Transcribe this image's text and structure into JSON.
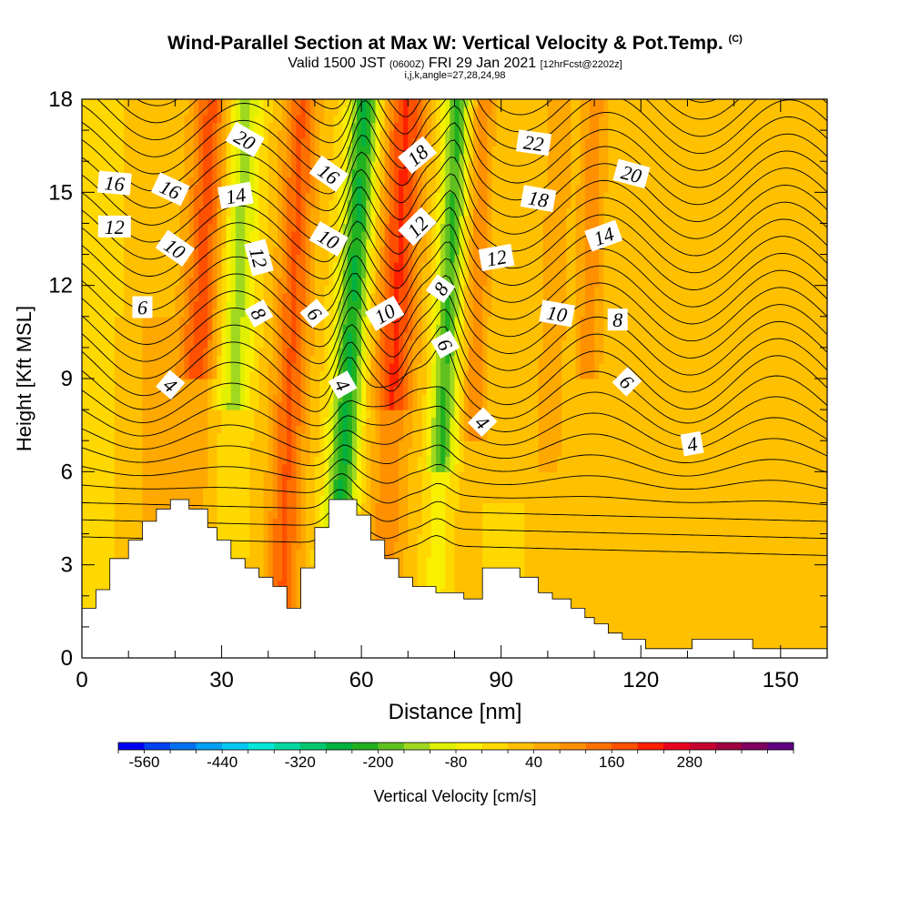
{
  "header": {
    "title": "Wind-Parallel Section at Max W: Vertical Velocity & Pot.Temp.",
    "copyright": "(C)",
    "valid_main": "Valid 1500 JST",
    "valid_utc": "(0600Z)",
    "valid_date": "FRI 29 Jan 2021",
    "forecast_info": "[12hrFcst@2202z]",
    "grid_info": "i,j,k,angle=27,28,24,98"
  },
  "chart_data": {
    "type": "heatmap",
    "xlabel": "Distance [nm]",
    "ylabel": "Height [Kft MSL]",
    "xlim": [
      0,
      160
    ],
    "ylim": [
      0,
      18
    ],
    "x_ticks": [
      "0",
      "30",
      "60",
      "90",
      "120",
      "150"
    ],
    "y_ticks": [
      "0",
      "3",
      "6",
      "9",
      "12",
      "15",
      "18"
    ],
    "colorbar": {
      "label": "Vertical Velocity [cm/s]",
      "tick_labels": [
        "-560",
        "-440",
        "-320",
        "-200",
        "-80",
        "40",
        "160",
        "280"
      ],
      "colors": [
        "#0000f0",
        "#0040f0",
        "#0070f0",
        "#00a0f0",
        "#00c8f0",
        "#00e8d8",
        "#00d8a0",
        "#00c870",
        "#00b040",
        "#20b020",
        "#60c020",
        "#a0d820",
        "#e0f000",
        "#f8f000",
        "#ffd800",
        "#ffc000",
        "#ffa800",
        "#ff9000",
        "#ff7000",
        "#ff5000",
        "#ff2000",
        "#e80020",
        "#c80030",
        "#a00040",
        "#800060",
        "#600080"
      ]
    },
    "terrain_nm_kft": [
      [
        0,
        1.6
      ],
      [
        3,
        2.2
      ],
      [
        6,
        3.2
      ],
      [
        10,
        3.8
      ],
      [
        13,
        4.4
      ],
      [
        16,
        4.8
      ],
      [
        19,
        5.1
      ],
      [
        23,
        4.8
      ],
      [
        27,
        4.2
      ],
      [
        29,
        3.8
      ],
      [
        32,
        3.2
      ],
      [
        35,
        2.9
      ],
      [
        38,
        2.6
      ],
      [
        41,
        2.3
      ],
      [
        44,
        1.6
      ],
      [
        47,
        2.9
      ],
      [
        50,
        4.2
      ],
      [
        53,
        5.1
      ],
      [
        59,
        4.6
      ],
      [
        62,
        3.8
      ],
      [
        65,
        3.2
      ],
      [
        68,
        2.6
      ],
      [
        71,
        2.3
      ],
      [
        76,
        2.1
      ],
      [
        82,
        1.9
      ],
      [
        86,
        2.9
      ],
      [
        94,
        2.6
      ],
      [
        98,
        2.1
      ],
      [
        101,
        1.9
      ],
      [
        105,
        1.6
      ],
      [
        108,
        1.3
      ],
      [
        110,
        1.1
      ],
      [
        113,
        0.8
      ],
      [
        116,
        0.6
      ],
      [
        121,
        0.3
      ],
      [
        131,
        0.6
      ],
      [
        144,
        0.3
      ],
      [
        160,
        0.3
      ]
    ],
    "theta_contour_labels": [
      {
        "text": "20",
        "x": 35,
        "y": 16.7,
        "angle": 30
      },
      {
        "text": "16",
        "x": 7,
        "y": 15.3,
        "angle": 5
      },
      {
        "text": "16",
        "x": 19,
        "y": 15.1,
        "angle": 25
      },
      {
        "text": "14",
        "x": 33,
        "y": 14.9,
        "angle": -10
      },
      {
        "text": "16",
        "x": 53,
        "y": 15.6,
        "angle": 35
      },
      {
        "text": "18",
        "x": 72,
        "y": 16.2,
        "angle": -40
      },
      {
        "text": "22",
        "x": 97,
        "y": 16.6,
        "angle": 8
      },
      {
        "text": "20",
        "x": 118,
        "y": 15.6,
        "angle": 15
      },
      {
        "text": "18",
        "x": 98,
        "y": 14.8,
        "angle": 10
      },
      {
        "text": "12",
        "x": 7,
        "y": 13.9,
        "angle": 0
      },
      {
        "text": "10",
        "x": 20,
        "y": 13.2,
        "angle": 35
      },
      {
        "text": "12",
        "x": 38,
        "y": 12.9,
        "angle": 75
      },
      {
        "text": "10",
        "x": 53,
        "y": 13.5,
        "angle": 30
      },
      {
        "text": "12",
        "x": 72,
        "y": 13.9,
        "angle": -45
      },
      {
        "text": "12",
        "x": 89,
        "y": 12.9,
        "angle": -10
      },
      {
        "text": "14",
        "x": 112,
        "y": 13.6,
        "angle": -20
      },
      {
        "text": "6",
        "x": 13,
        "y": 11.3,
        "angle": 0
      },
      {
        "text": "8",
        "x": 38,
        "y": 11.1,
        "angle": 60
      },
      {
        "text": "6",
        "x": 50,
        "y": 11.1,
        "angle": 50
      },
      {
        "text": "10",
        "x": 65,
        "y": 11.1,
        "angle": -30
      },
      {
        "text": "8",
        "x": 77,
        "y": 11.9,
        "angle": -55
      },
      {
        "text": "10",
        "x": 102,
        "y": 11.1,
        "angle": 10
      },
      {
        "text": "8",
        "x": 115,
        "y": 10.9,
        "angle": 0
      },
      {
        "text": "6",
        "x": 78,
        "y": 10.1,
        "angle": 60
      },
      {
        "text": "4",
        "x": 19,
        "y": 8.8,
        "angle": 40
      },
      {
        "text": "4",
        "x": 56,
        "y": 8.8,
        "angle": 60
      },
      {
        "text": "6",
        "x": 117,
        "y": 8.9,
        "angle": 45
      },
      {
        "text": "4",
        "x": 86,
        "y": 7.6,
        "angle": 45
      },
      {
        "text": "4",
        "x": 131,
        "y": 6.9,
        "angle": -10
      }
    ]
  }
}
